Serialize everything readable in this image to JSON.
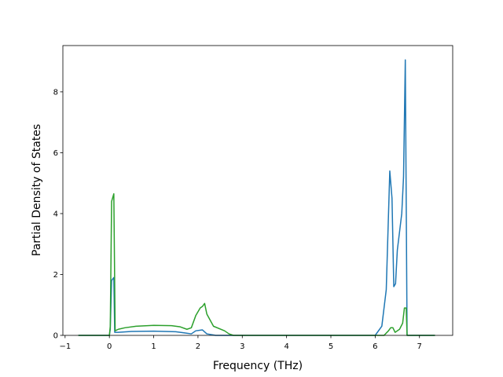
{
  "chart_data": {
    "type": "line",
    "xlabel": "Frequency (THz)",
    "ylabel": "Partial Density of States",
    "xlim": [
      -1.05,
      7.75
    ],
    "ylim": [
      0,
      9.52
    ],
    "xticks": [
      {
        "value": -1,
        "label": "−1"
      },
      0,
      1,
      2,
      3,
      4,
      5,
      6,
      7
    ],
    "yticks": [
      0,
      2,
      4,
      6,
      8
    ],
    "series": [
      {
        "color": "#1f77b4",
        "x": [
          -0.7,
          0,
          0.02,
          0.05,
          0.1,
          0.12,
          0.2,
          0.5,
          1.0,
          1.5,
          1.7,
          1.85,
          1.95,
          2.1,
          2.2,
          2.4,
          6.0,
          6.15,
          6.25,
          6.33,
          6.38,
          6.42,
          6.46,
          6.5,
          6.6,
          6.64,
          6.68,
          6.72,
          7.35
        ],
        "values": [
          0,
          0,
          0.2,
          1.8,
          1.9,
          0.1,
          0.1,
          0.13,
          0.14,
          0.12,
          0.08,
          0.05,
          0.15,
          0.18,
          0.05,
          0,
          0,
          0.3,
          1.5,
          5.4,
          4.5,
          1.6,
          1.7,
          2.8,
          4.0,
          5.2,
          9.05,
          0,
          0
        ]
      },
      {
        "color": "#2ca02c",
        "x": [
          -0.7,
          0,
          0.02,
          0.05,
          0.1,
          0.13,
          0.2,
          0.35,
          0.6,
          1.0,
          1.4,
          1.6,
          1.75,
          1.85,
          1.95,
          2.05,
          2.1,
          2.15,
          2.2,
          2.35,
          2.6,
          2.7,
          2.8,
          6.2,
          6.3,
          6.35,
          6.4,
          6.45,
          6.55,
          6.62,
          6.66,
          6.7,
          6.72,
          7.35
        ],
        "values": [
          0,
          0,
          0.3,
          4.4,
          4.65,
          0.15,
          0.2,
          0.25,
          0.3,
          0.33,
          0.32,
          0.28,
          0.2,
          0.25,
          0.65,
          0.9,
          0.95,
          1.05,
          0.7,
          0.3,
          0.15,
          0.05,
          0,
          0,
          0.15,
          0.25,
          0.25,
          0.1,
          0.2,
          0.4,
          0.9,
          0.9,
          0,
          0
        ]
      }
    ]
  }
}
